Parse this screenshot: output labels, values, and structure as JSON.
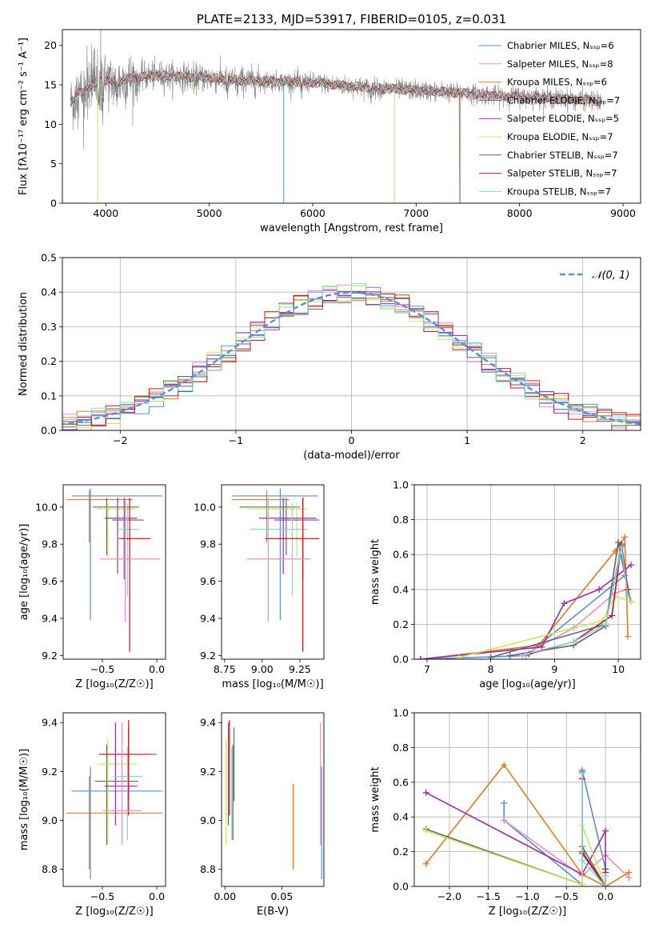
{
  "colors": {
    "blue": "#5b8fd6",
    "pink": "#e98fcb",
    "orange": "#e07b24",
    "gray": "#5e6b6b",
    "purple": "#9a2ea8",
    "yellowgreen": "#c8e85a",
    "dkgray": "#666666",
    "red": "#c8141e",
    "cyan": "#7fd6dd",
    "grid": "#b0b0b0"
  },
  "chart_data": [
    {
      "id": "spectrum",
      "type": "line",
      "title": "PLATE=2133, MJD=53917, FIBERID=0105, z=0.031",
      "xlabel": "wavelength [Angstrom, rest frame]",
      "ylabel": "Flux [fλ10⁻¹⁷ erg cm⁻² s⁻¹ A⁻¹]",
      "xlim": [
        3580,
        9170
      ],
      "ylim": [
        0,
        22
      ],
      "xticks": [
        4000,
        5000,
        6000,
        7000,
        8000,
        9000
      ],
      "yticks": [
        0,
        5,
        10,
        15,
        20
      ],
      "grid": false,
      "legend_position": "top-right",
      "legend": [
        {
          "label": "Chabrier MILES, Nₛₛₚ=6",
          "color": "blue"
        },
        {
          "label": "Salpeter MILES, Nₛₛₚ=8",
          "color": "pink"
        },
        {
          "label": "Kroupa MILES, Nₛₛₚ=6",
          "color": "orange"
        },
        {
          "label": "Chabrier ELODIE, Nₛₛₚ=7",
          "color": "gray"
        },
        {
          "label": "Salpeter ELODIE, Nₛₛₚ=5",
          "color": "purple"
        },
        {
          "label": "Kroupa ELODIE, Nₛₛₚ=7",
          "color": "yellowgreen"
        },
        {
          "label": "Chabrier STELIB, Nₛₛₚ=7",
          "color": "dkgray"
        },
        {
          "label": "Salpeter STELIB, Nₛₛₚ=7",
          "color": "red"
        },
        {
          "label": "Kroupa STELIB, Nₛₛₚ=7",
          "color": "cyan"
        }
      ],
      "continuum": [
        [
          3700,
          13.8
        ],
        [
          3800,
          14.3
        ],
        [
          3950,
          15.6
        ],
        [
          4100,
          15.3
        ],
        [
          4300,
          16.0
        ],
        [
          4500,
          16.2
        ],
        [
          4800,
          16.0
        ],
        [
          5000,
          15.9
        ],
        [
          5200,
          15.6
        ],
        [
          5500,
          15.5
        ],
        [
          5800,
          15.4
        ],
        [
          6000,
          15.3
        ],
        [
          6300,
          14.9
        ],
        [
          6600,
          14.6
        ],
        [
          7000,
          14.3
        ],
        [
          7400,
          14.0
        ],
        [
          7800,
          13.6
        ],
        [
          8200,
          13.4
        ],
        [
          8600,
          13.1
        ],
        [
          8800,
          12.9
        ]
      ]
    },
    {
      "id": "residuals",
      "type": "histogram",
      "xlabel": "(data-model)/error",
      "ylabel": "Normed distribution",
      "xlim": [
        -2.5,
        2.5
      ],
      "ylim": [
        0,
        0.5
      ],
      "xticks": [
        -2,
        -1,
        0,
        1,
        2
      ],
      "yticks": [
        0.0,
        0.1,
        0.2,
        0.3,
        0.4,
        0.5
      ],
      "grid": true,
      "legend_position": "top-right",
      "legend": [
        {
          "label": "𝒩(0, 1)",
          "color": "blue"
        }
      ],
      "bin_width": 0.125,
      "series_colors": [
        "blue",
        "pink",
        "orange",
        "gray",
        "purple",
        "yellowgreen",
        "dkgray",
        "red",
        "cyan"
      ],
      "reference": "normal(0,1) pdf"
    },
    {
      "id": "age_vs_Z",
      "type": "errorbar",
      "xlabel": "Z [log₁₀(Z/Z☉)]",
      "ylabel": "age  [log₁₀(age/yr)]",
      "xlim": [
        -0.86,
        0.08
      ],
      "ylim": [
        9.18,
        10.12
      ],
      "xticks": [
        -0.5,
        0.0
      ],
      "yticks": [
        9.2,
        9.4,
        9.6,
        9.8,
        10.0
      ],
      "grid": false,
      "points": [
        {
          "color": "blue",
          "x": -0.61,
          "xlo": -0.78,
          "xhi": 0.05,
          "y": 10.06,
          "ylo": 9.39,
          "yhi": 10.1
        },
        {
          "color": "orange",
          "x": -0.62,
          "xlo": -0.83,
          "xhi": -0.22,
          "y": 10.04,
          "ylo": 9.81,
          "yhi": 10.09
        },
        {
          "color": "gray",
          "x": -0.46,
          "xlo": -0.59,
          "xhi": -0.16,
          "y": 10.0,
          "ylo": 9.74,
          "yhi": 10.05
        },
        {
          "color": "yellowgreen",
          "x": -0.45,
          "xlo": -0.55,
          "xhi": -0.2,
          "y": 9.99,
          "ylo": 9.73,
          "yhi": 10.02
        },
        {
          "color": "purple",
          "x": -0.36,
          "xlo": -0.48,
          "xhi": -0.18,
          "y": 9.94,
          "ylo": 9.64,
          "yhi": 10.05
        },
        {
          "color": "dkgray",
          "x": -0.3,
          "xlo": -0.41,
          "xhi": -0.12,
          "y": 9.93,
          "ylo": 9.61,
          "yhi": 10.05
        },
        {
          "color": "cyan",
          "x": -0.27,
          "xlo": -0.35,
          "xhi": -0.17,
          "y": 9.88,
          "ylo": 9.52,
          "yhi": 10.02
        },
        {
          "color": "red",
          "x": -0.25,
          "xlo": -0.35,
          "xhi": -0.06,
          "y": 9.83,
          "ylo": 9.22,
          "yhi": 10.05
        },
        {
          "color": "pink",
          "x": -0.29,
          "xlo": -0.52,
          "xhi": 0.03,
          "y": 9.72,
          "ylo": 9.38,
          "yhi": 10.05
        }
      ]
    },
    {
      "id": "age_vs_mass",
      "type": "errorbar",
      "xlabel": "mass [log₁₀(M/M☉)]",
      "ylabel": "",
      "xlim": [
        8.73,
        9.41
      ],
      "ylim": [
        9.18,
        10.12
      ],
      "xticks": [
        8.75,
        9.0,
        9.25
      ],
      "yticks": [
        9.2,
        9.4,
        9.6,
        9.8,
        10.0
      ],
      "tick_labels": {
        "x": [
          "8.75",
          "9.00",
          "9.25"
        ]
      },
      "grid": false,
      "points": [
        {
          "color": "blue",
          "x": 9.12,
          "xlo": 8.8,
          "xhi": 9.37,
          "y": 10.06,
          "ylo": 9.39,
          "yhi": 10.1
        },
        {
          "color": "orange",
          "x": 9.03,
          "xlo": 8.8,
          "xhi": 9.18,
          "y": 10.04,
          "ylo": 9.81,
          "yhi": 10.09
        },
        {
          "color": "gray",
          "x": 9.16,
          "xlo": 8.85,
          "xhi": 9.25,
          "y": 10.0,
          "ylo": 9.74,
          "yhi": 10.05
        },
        {
          "color": "yellowgreen",
          "x": 9.23,
          "xlo": 8.9,
          "xhi": 9.3,
          "y": 9.99,
          "ylo": 9.73,
          "yhi": 10.02
        },
        {
          "color": "purple",
          "x": 9.14,
          "xlo": 8.98,
          "xhi": 9.36,
          "y": 9.94,
          "ylo": 9.64,
          "yhi": 10.05
        },
        {
          "color": "dkgray",
          "x": 9.27,
          "xlo": 9.08,
          "xhi": 9.38,
          "y": 9.93,
          "ylo": 9.61,
          "yhi": 10.05
        },
        {
          "color": "cyan",
          "x": 9.2,
          "xlo": 8.92,
          "xhi": 9.3,
          "y": 9.88,
          "ylo": 9.52,
          "yhi": 10.02
        },
        {
          "color": "red",
          "x": 9.27,
          "xlo": 9.02,
          "xhi": 9.38,
          "y": 9.83,
          "ylo": 9.22,
          "yhi": 10.05
        },
        {
          "color": "pink",
          "x": 9.04,
          "xlo": 8.9,
          "xhi": 9.32,
          "y": 9.72,
          "ylo": 9.38,
          "yhi": 10.05
        }
      ]
    },
    {
      "id": "mass_weight_vs_age",
      "type": "line",
      "xlabel": "age  [log₁₀(age/yr)]",
      "ylabel": "mass weight",
      "xlim": [
        6.8,
        10.35
      ],
      "ylim": [
        0,
        1
      ],
      "xticks": [
        7,
        8,
        9,
        10
      ],
      "yticks": [
        0.0,
        0.2,
        0.4,
        0.6,
        0.8,
        1.0
      ],
      "grid": true,
      "series": [
        {
          "color": "blue",
          "x": [
            6.9,
            8.55,
            10.1
          ],
          "y": [
            0.0,
            0.02,
            0.48
          ]
        },
        {
          "color": "pink",
          "x": [
            8.5,
            9.3,
            9.95,
            10.15
          ],
          "y": [
            0.02,
            0.18,
            0.38,
            0.4
          ]
        },
        {
          "color": "orange",
          "x": [
            6.9,
            8.75,
            9.95,
            10.1,
            10.15
          ],
          "y": [
            0.0,
            0.08,
            0.62,
            0.7,
            0.13
          ]
        },
        {
          "color": "gray",
          "x": [
            8.0,
            9.8,
            10.05,
            10.15,
            10.2
          ],
          "y": [
            0.01,
            0.2,
            0.65,
            0.4,
            0.33
          ]
        },
        {
          "color": "purple",
          "x": [
            6.9,
            8.8,
            9.15,
            9.7,
            10.2
          ],
          "y": [
            0.0,
            0.07,
            0.32,
            0.4,
            0.54
          ]
        },
        {
          "color": "yellowgreen",
          "x": [
            7.5,
            9.75,
            9.95,
            10.2
          ],
          "y": [
            0.01,
            0.22,
            0.36,
            0.33
          ]
        },
        {
          "color": "dkgray",
          "x": [
            8.3,
            9.3,
            9.8,
            10.0,
            10.15
          ],
          "y": [
            0.02,
            0.08,
            0.19,
            0.67,
            0.4
          ]
        },
        {
          "color": "red",
          "x": [
            8.6,
            9.3,
            9.9,
            10.05,
            10.15
          ],
          "y": [
            0.03,
            0.1,
            0.25,
            0.66,
            0.4
          ]
        },
        {
          "color": "cyan",
          "x": [
            8.55,
            9.3,
            9.8,
            10.05,
            10.15
          ],
          "y": [
            0.03,
            0.1,
            0.2,
            0.64,
            0.36
          ]
        }
      ]
    },
    {
      "id": "mass_vs_Z",
      "type": "errorbar",
      "xlabel": "Z [log₁₀(Z/Z☉)]",
      "ylabel": "mass [log₁₀(M/M☉)]",
      "xlim": [
        -0.86,
        0.08
      ],
      "ylim": [
        8.73,
        9.44
      ],
      "xticks": [
        -0.5,
        0.0
      ],
      "yticks": [
        8.8,
        9.0,
        9.2,
        9.4
      ],
      "grid": false,
      "points": [
        {
          "color": "blue",
          "x": -0.61,
          "xlo": -0.78,
          "xhi": 0.05,
          "y": 9.12,
          "ylo": 8.76,
          "yhi": 9.22
        },
        {
          "color": "orange",
          "x": -0.62,
          "xlo": -0.83,
          "xhi": 0.05,
          "y": 9.03,
          "ylo": 8.8,
          "yhi": 9.18
        },
        {
          "color": "gray",
          "x": -0.46,
          "xlo": -0.57,
          "xhi": -0.17,
          "y": 9.16,
          "ylo": 8.9,
          "yhi": 9.31
        },
        {
          "color": "yellowgreen",
          "x": -0.45,
          "xlo": -0.55,
          "xhi": -0.18,
          "y": 9.23,
          "ylo": 8.9,
          "yhi": 9.33
        },
        {
          "color": "purple",
          "x": -0.38,
          "xlo": -0.48,
          "xhi": -0.18,
          "y": 9.14,
          "ylo": 8.98,
          "yhi": 9.4
        },
        {
          "color": "dkgray",
          "x": -0.26,
          "xlo": -0.53,
          "xhi": 0.0,
          "y": 9.27,
          "ylo": 9.08,
          "yhi": 9.38
        },
        {
          "color": "cyan",
          "x": -0.27,
          "xlo": -0.4,
          "xhi": -0.13,
          "y": 9.18,
          "ylo": 8.92,
          "yhi": 9.3
        },
        {
          "color": "red",
          "x": -0.26,
          "xlo": -0.53,
          "xhi": -0.05,
          "y": 9.27,
          "ylo": 9.02,
          "yhi": 9.41
        },
        {
          "color": "pink",
          "x": -0.32,
          "xlo": -0.5,
          "xhi": -0.14,
          "y": 9.04,
          "ylo": 8.9,
          "yhi": 9.4
        }
      ]
    },
    {
      "id": "mass_vs_ebv",
      "type": "errorbar",
      "xlabel": "E(B-V)",
      "ylabel": "",
      "xlim": [
        -0.003,
        0.087
      ],
      "ylim": [
        8.73,
        9.44
      ],
      "xticks": [
        0.0,
        0.05
      ],
      "yticks": [
        8.8,
        9.0,
        9.2,
        9.4
      ],
      "tick_labels": {
        "x": [
          "0.00",
          "0.05"
        ]
      },
      "grid": false,
      "points": [
        {
          "color": "blue",
          "x": 0.085,
          "xlo": 0.085,
          "xhi": 0.085,
          "y": 9.12,
          "ylo": 8.76,
          "yhi": 9.22
        },
        {
          "color": "orange",
          "x": 0.06,
          "xlo": 0.06,
          "xhi": 0.06,
          "y": 9.03,
          "ylo": 8.8,
          "yhi": 9.15
        },
        {
          "color": "gray",
          "x": 0.007,
          "xlo": 0.007,
          "xhi": 0.007,
          "y": 9.16,
          "ylo": 8.92,
          "yhi": 9.31
        },
        {
          "color": "yellowgreen",
          "x": 0.001,
          "xlo": 0.001,
          "xhi": 0.001,
          "y": 9.23,
          "ylo": 8.9,
          "yhi": 9.33
        },
        {
          "color": "purple",
          "x": 0.003,
          "xlo": 0.003,
          "xhi": 0.003,
          "y": 9.14,
          "ylo": 8.98,
          "yhi": 9.4
        },
        {
          "color": "dkgray",
          "x": 0.008,
          "xlo": 0.008,
          "xhi": 0.008,
          "y": 9.27,
          "ylo": 9.08,
          "yhi": 9.38
        },
        {
          "color": "cyan",
          "x": 0.006,
          "xlo": 0.006,
          "xhi": 0.006,
          "y": 9.18,
          "ylo": 8.92,
          "yhi": 9.3
        },
        {
          "color": "red",
          "x": 0.004,
          "xlo": 0.004,
          "xhi": 0.004,
          "y": 9.27,
          "ylo": 9.02,
          "yhi": 9.41
        },
        {
          "color": "pink",
          "x": 0.084,
          "xlo": 0.084,
          "xhi": 0.084,
          "y": 9.04,
          "ylo": 8.9,
          "yhi": 9.4
        }
      ]
    },
    {
      "id": "mass_weight_vs_Z",
      "type": "line",
      "xlabel": "Z [log₁₀(Z/Z☉)]",
      "ylabel": "mass weight",
      "xlim": [
        -2.45,
        0.45
      ],
      "ylim": [
        0,
        1
      ],
      "xticks": [
        -2.0,
        -1.5,
        -1.0,
        -0.5,
        0.0
      ],
      "yticks": [
        0.0,
        0.2,
        0.4,
        0.6,
        0.8,
        1.0
      ],
      "grid": true,
      "series": [
        {
          "color": "blue",
          "x": [
            -1.3,
            -1.3,
            -0.3,
            -0.3,
            0.0
          ],
          "y": [
            0.48,
            0.38,
            0.01,
            0.67,
            0.1
          ]
        },
        {
          "color": "pink",
          "x": [
            -1.3,
            -0.3,
            0.0,
            0.3
          ],
          "y": [
            0.38,
            0.06,
            0.18,
            0.05
          ]
        },
        {
          "color": "orange",
          "x": [
            -2.3,
            -1.3,
            -0.3,
            0.0,
            0.3
          ],
          "y": [
            0.13,
            0.7,
            0.07,
            0.0,
            0.08
          ]
        },
        {
          "color": "gray",
          "x": [
            -2.3,
            -0.3,
            -0.3,
            0.0
          ],
          "y": [
            0.33,
            0.01,
            0.23,
            0.0
          ]
        },
        {
          "color": "purple",
          "x": [
            -2.3,
            -0.3,
            0.0,
            0.0
          ],
          "y": [
            0.54,
            0.07,
            0.32,
            0.0
          ]
        },
        {
          "color": "yellowgreen",
          "x": [
            -2.3,
            -0.3,
            -0.3,
            0.0
          ],
          "y": [
            0.32,
            0.01,
            0.35,
            0.0
          ]
        },
        {
          "color": "dkgray",
          "x": [
            -0.3,
            -0.3,
            0.0,
            0.0
          ],
          "y": [
            0.66,
            0.19,
            0.0,
            0.1
          ]
        },
        {
          "color": "red",
          "x": [
            -0.3,
            -0.3,
            0.0,
            0.0
          ],
          "y": [
            0.62,
            0.2,
            0.0,
            0.08
          ]
        },
        {
          "color": "cyan",
          "x": [
            -0.3,
            -0.3,
            0.0,
            0.0
          ],
          "y": [
            0.65,
            0.15,
            0.0,
            0.06
          ]
        }
      ]
    }
  ]
}
